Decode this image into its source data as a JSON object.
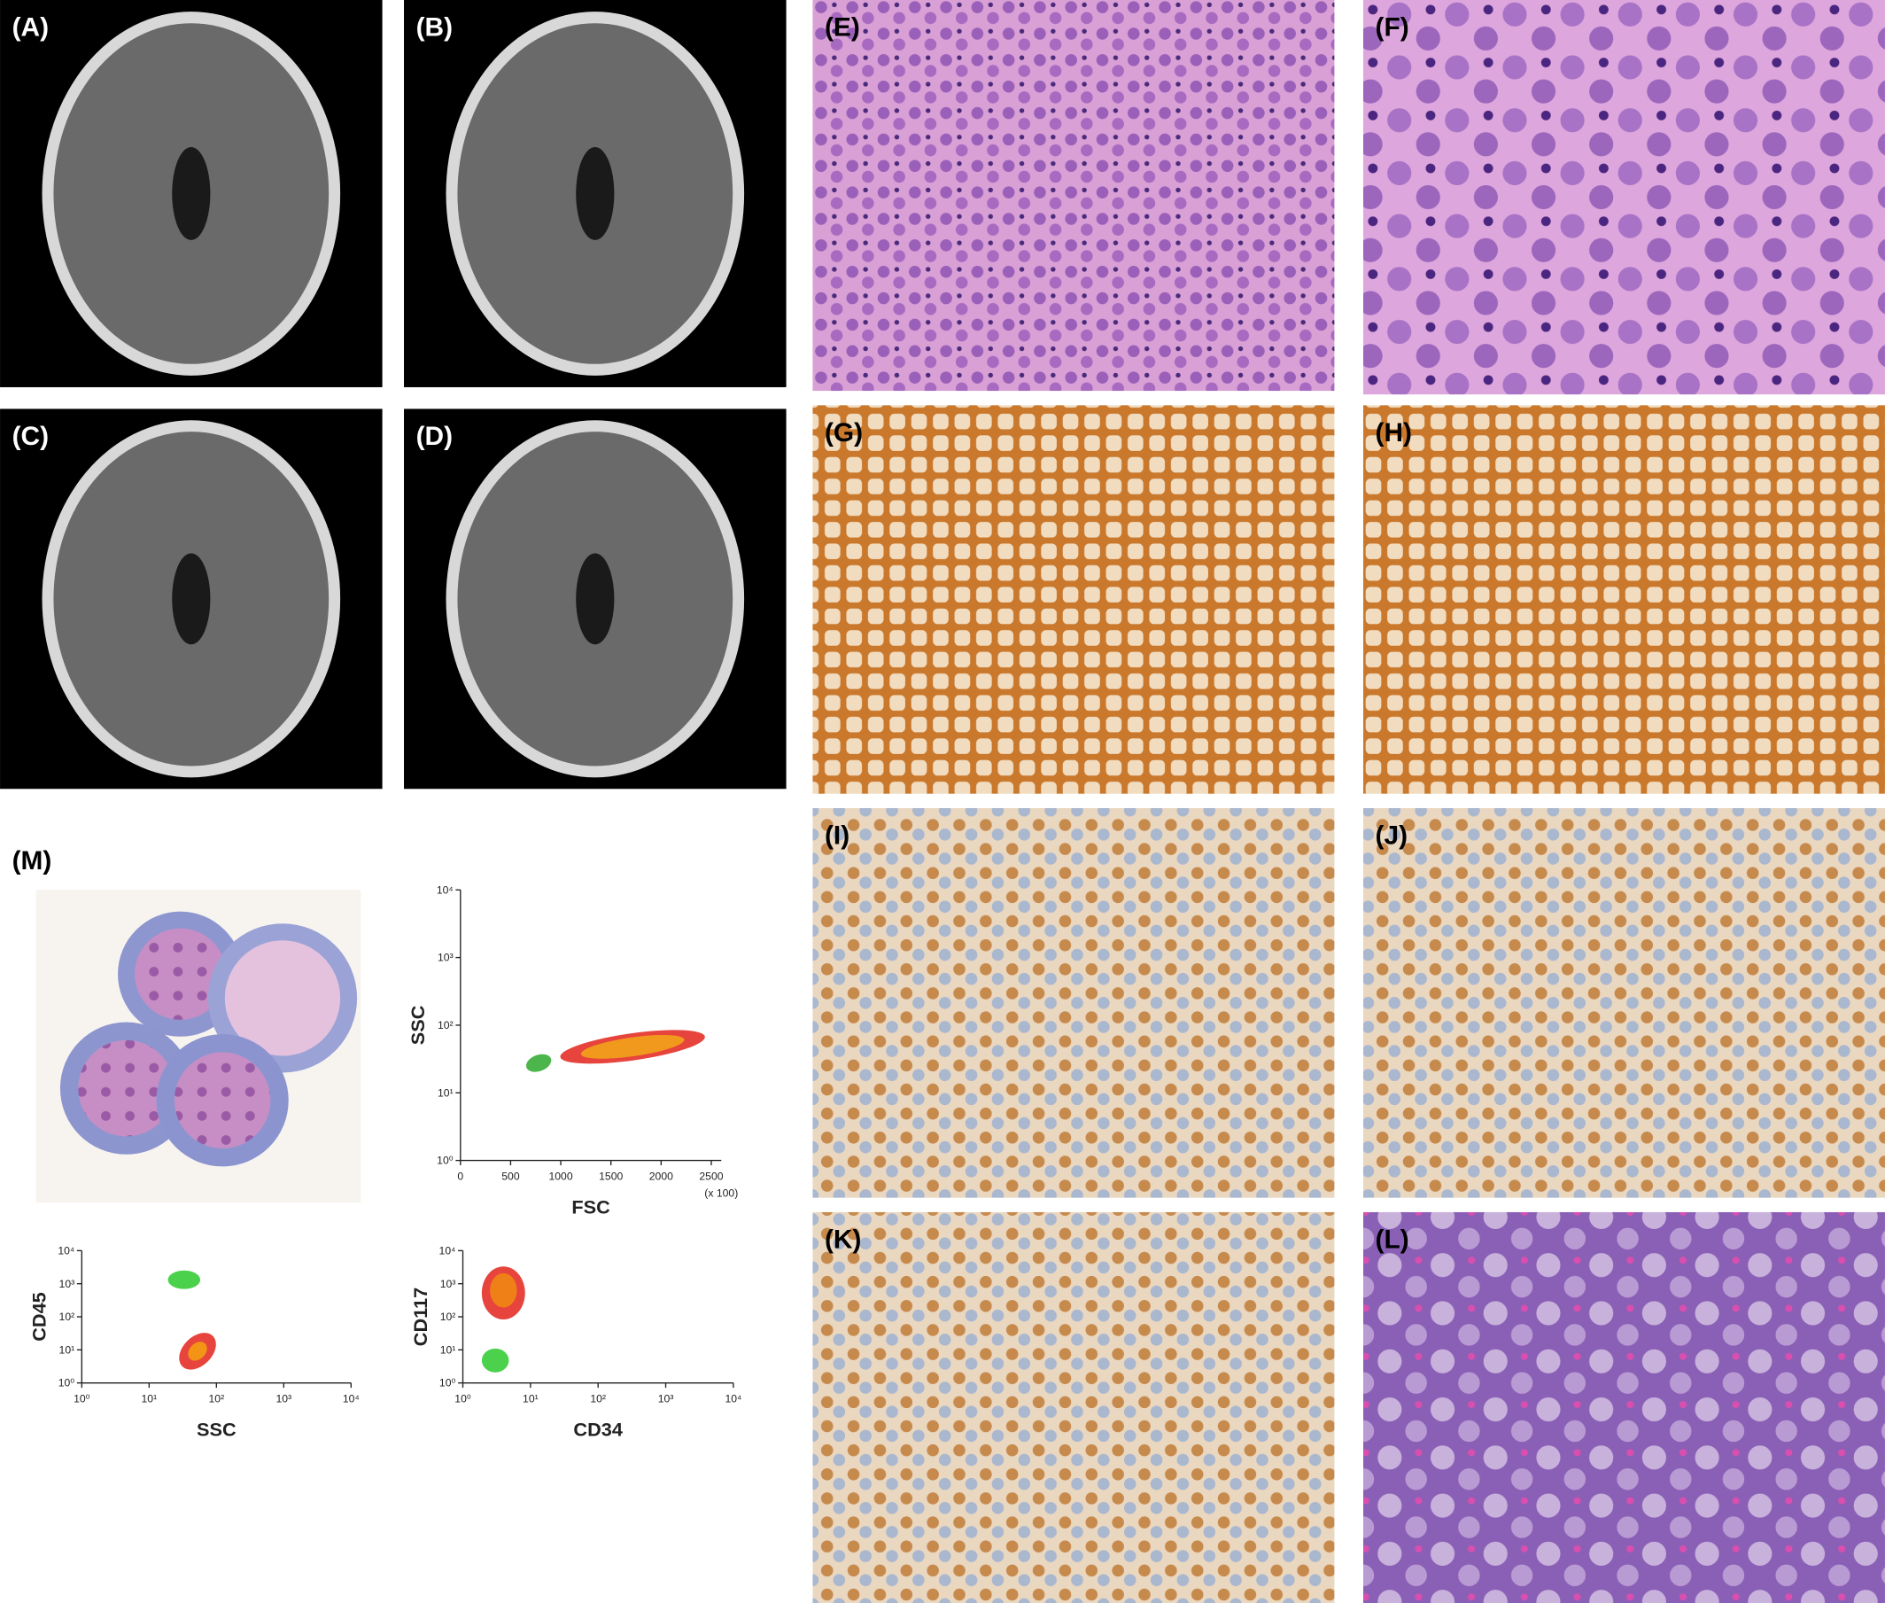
{
  "panels": [
    {
      "label": "(A)"
    },
    {
      "label": "(B)"
    },
    {
      "label": "(C)"
    },
    {
      "label": "(D)"
    },
    {
      "label": "(E)"
    },
    {
      "label": "(F)"
    },
    {
      "label": "(G)"
    },
    {
      "label": "(H)"
    },
    {
      "label": "(I)"
    },
    {
      "label": "(J)"
    },
    {
      "label": "(K)"
    },
    {
      "label": "(L)"
    }
  ],
  "figure_m": {
    "label": "(M)",
    "plots": [
      {
        "xlabel": "FSC",
        "ylabel": "SSC",
        "x_note": "(x 100)",
        "xlog": false,
        "ylog": true,
        "xlim": [
          0,
          2600
        ],
        "xticks": [
          0,
          500,
          1000,
          1500,
          2000,
          2500
        ],
        "ylim": [
          1,
          10000
        ],
        "yticks": [
          {
            "value": 1,
            "label": "10⁰"
          },
          {
            "value": 10,
            "label": "10¹"
          },
          {
            "value": 100,
            "label": "10²"
          },
          {
            "value": 1000,
            "label": "10³"
          },
          {
            "value": 10000,
            "label": "10⁴"
          }
        ]
      },
      {
        "xlabel": "SSC",
        "ylabel": "CD45",
        "xlog": true,
        "ylog": true,
        "xlim": [
          1,
          10000
        ],
        "xticks": [
          {
            "value": 1,
            "label": "10⁰"
          },
          {
            "value": 10,
            "label": "10¹"
          },
          {
            "value": 100,
            "label": "10²"
          },
          {
            "value": 1000,
            "label": "10³"
          },
          {
            "value": 10000,
            "label": "10⁴"
          }
        ],
        "ylim": [
          1,
          10000
        ],
        "yticks": [
          {
            "value": 1,
            "label": "10⁰"
          },
          {
            "value": 10,
            "label": "10¹"
          },
          {
            "value": 100,
            "label": "10²"
          },
          {
            "value": 1000,
            "label": "10³"
          },
          {
            "value": 10000,
            "label": "10⁴"
          }
        ]
      },
      {
        "xlabel": "CD34",
        "ylabel": "CD117",
        "xlog": true,
        "ylog": true,
        "xlim": [
          1,
          10000
        ],
        "xticks": [
          {
            "value": 1,
            "label": "10⁰"
          },
          {
            "value": 10,
            "label": "10¹"
          },
          {
            "value": 100,
            "label": "10²"
          },
          {
            "value": 1000,
            "label": "10³"
          },
          {
            "value": 10000,
            "label": "10⁴"
          }
        ],
        "ylim": [
          1,
          10000
        ],
        "yticks": [
          {
            "value": 1,
            "label": "10⁰"
          },
          {
            "value": 10,
            "label": "10¹"
          },
          {
            "value": 100,
            "label": "10²"
          },
          {
            "value": 1000,
            "label": "10³"
          },
          {
            "value": 10000,
            "label": "10⁴"
          }
        ]
      }
    ]
  }
}
